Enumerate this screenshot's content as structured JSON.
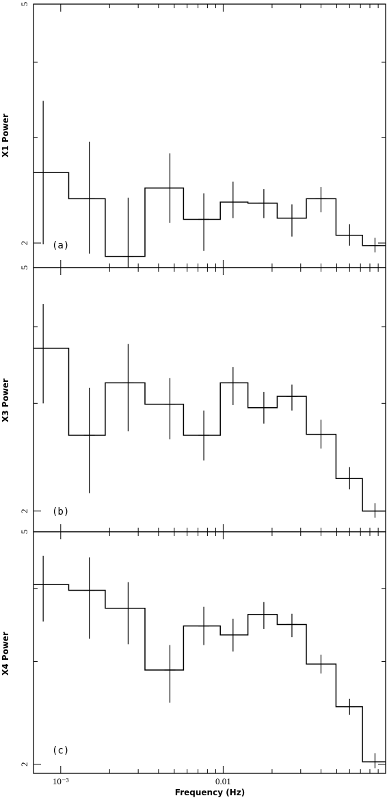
{
  "chart_data": [
    {
      "type": "line",
      "step": true,
      "x_scale": "log",
      "y_scale": "log",
      "xlim": [
        0.00068,
        0.1
      ],
      "ylim": [
        1.82,
        5.0
      ],
      "ylabel": "X1 Power",
      "panel_label": "(a)",
      "y_tick_labels": [
        {
          "value": 5,
          "label": "5"
        },
        {
          "value": 2,
          "label": "2"
        }
      ],
      "bins": [
        {
          "lo": 0.00068,
          "hi": 0.00112,
          "x": 0.00078,
          "y": 2.62,
          "err_lo": 1.99,
          "err_hi": 3.45
        },
        {
          "lo": 0.00112,
          "hi": 0.00188,
          "x": 0.0015,
          "y": 2.37,
          "err_lo": 1.92,
          "err_hi": 2.95
        },
        {
          "lo": 0.00188,
          "hi": 0.0033,
          "x": 0.0026,
          "y": 1.9,
          "err_lo": 1.82,
          "err_hi": 2.38
        },
        {
          "lo": 0.0033,
          "hi": 0.0057,
          "x": 0.0047,
          "y": 2.47,
          "err_lo": 2.16,
          "err_hi": 2.82
        },
        {
          "lo": 0.0057,
          "hi": 0.0096,
          "x": 0.0076,
          "y": 2.19,
          "err_lo": 1.94,
          "err_hi": 2.42
        },
        {
          "lo": 0.0096,
          "hi": 0.0142,
          "x": 0.0115,
          "y": 2.34,
          "err_lo": 2.2,
          "err_hi": 2.53
        },
        {
          "lo": 0.0142,
          "hi": 0.0215,
          "x": 0.0178,
          "y": 2.33,
          "err_lo": 2.2,
          "err_hi": 2.46
        },
        {
          "lo": 0.0215,
          "hi": 0.0325,
          "x": 0.0265,
          "y": 2.2,
          "err_lo": 2.05,
          "err_hi": 2.32
        },
        {
          "lo": 0.0325,
          "hi": 0.0495,
          "x": 0.04,
          "y": 2.37,
          "err_lo": 2.25,
          "err_hi": 2.48
        },
        {
          "lo": 0.0495,
          "hi": 0.072,
          "x": 0.06,
          "y": 2.06,
          "err_lo": 1.98,
          "err_hi": 2.15
        },
        {
          "lo": 0.072,
          "hi": 0.1,
          "x": 0.086,
          "y": 1.98,
          "err_lo": 1.93,
          "err_hi": 2.04
        }
      ]
    },
    {
      "type": "line",
      "step": true,
      "x_scale": "log",
      "y_scale": "log",
      "xlim": [
        0.00068,
        0.1
      ],
      "ylim": [
        1.85,
        5.0
      ],
      "ylabel": "X3 Power",
      "panel_label": "(b)",
      "y_tick_labels": [
        {
          "value": 5,
          "label": "5"
        },
        {
          "value": 2,
          "label": "2"
        }
      ],
      "bins": [
        {
          "lo": 0.00068,
          "hi": 0.00112,
          "x": 0.00078,
          "y": 3.69,
          "err_lo": 3.0,
          "err_hi": 4.36
        },
        {
          "lo": 0.00112,
          "hi": 0.00188,
          "x": 0.0015,
          "y": 2.66,
          "err_lo": 2.14,
          "err_hi": 3.18
        },
        {
          "lo": 0.00188,
          "hi": 0.0033,
          "x": 0.0026,
          "y": 3.24,
          "err_lo": 2.7,
          "err_hi": 3.75
        },
        {
          "lo": 0.0033,
          "hi": 0.0057,
          "x": 0.0047,
          "y": 2.99,
          "err_lo": 2.62,
          "err_hi": 3.3
        },
        {
          "lo": 0.0057,
          "hi": 0.0096,
          "x": 0.0076,
          "y": 2.66,
          "err_lo": 2.42,
          "err_hi": 2.92
        },
        {
          "lo": 0.0096,
          "hi": 0.0142,
          "x": 0.0115,
          "y": 3.24,
          "err_lo": 2.98,
          "err_hi": 3.44
        },
        {
          "lo": 0.0142,
          "hi": 0.0215,
          "x": 0.0178,
          "y": 2.95,
          "err_lo": 2.78,
          "err_hi": 3.13
        },
        {
          "lo": 0.0215,
          "hi": 0.0325,
          "x": 0.0265,
          "y": 3.08,
          "err_lo": 2.92,
          "err_hi": 3.22
        },
        {
          "lo": 0.0325,
          "hi": 0.0495,
          "x": 0.04,
          "y": 2.67,
          "err_lo": 2.53,
          "err_hi": 2.82
        },
        {
          "lo": 0.0495,
          "hi": 0.072,
          "x": 0.06,
          "y": 2.26,
          "err_lo": 2.17,
          "err_hi": 2.36
        },
        {
          "lo": 0.072,
          "hi": 0.1,
          "x": 0.086,
          "y": 2.0,
          "err_lo": 1.95,
          "err_hi": 2.06
        }
      ]
    },
    {
      "type": "line",
      "step": true,
      "x_scale": "log",
      "y_scale": "log",
      "xlim": [
        0.00068,
        0.1
      ],
      "ylim": [
        1.93,
        5.0
      ],
      "ylabel": "X4 Power",
      "xlabel": "Frequency (Hz)",
      "panel_label": "(c)",
      "y_tick_labels": [
        {
          "value": 5,
          "label": "5"
        },
        {
          "value": 2,
          "label": "2"
        }
      ],
      "x_tick_labels": [
        {
          "value": 0.001,
          "label": "10⁻³"
        },
        {
          "value": 0.01,
          "label": "0.01"
        }
      ],
      "bins": [
        {
          "lo": 0.00068,
          "hi": 0.00112,
          "x": 0.00078,
          "y": 4.06,
          "err_lo": 3.51,
          "err_hi": 4.55
        },
        {
          "lo": 0.00112,
          "hi": 0.00188,
          "x": 0.0015,
          "y": 3.97,
          "err_lo": 3.28,
          "err_hi": 4.52
        },
        {
          "lo": 0.00188,
          "hi": 0.0033,
          "x": 0.0026,
          "y": 3.7,
          "err_lo": 3.21,
          "err_hi": 4.1
        },
        {
          "lo": 0.0033,
          "hi": 0.0057,
          "x": 0.0047,
          "y": 2.9,
          "err_lo": 2.55,
          "err_hi": 3.2
        },
        {
          "lo": 0.0057,
          "hi": 0.0096,
          "x": 0.0076,
          "y": 3.45,
          "err_lo": 3.2,
          "err_hi": 3.72
        },
        {
          "lo": 0.0096,
          "hi": 0.0142,
          "x": 0.0115,
          "y": 3.33,
          "err_lo": 3.12,
          "err_hi": 3.55
        },
        {
          "lo": 0.0142,
          "hi": 0.0215,
          "x": 0.0178,
          "y": 3.61,
          "err_lo": 3.41,
          "err_hi": 3.79
        },
        {
          "lo": 0.0215,
          "hi": 0.0325,
          "x": 0.0265,
          "y": 3.47,
          "err_lo": 3.3,
          "err_hi": 3.62
        },
        {
          "lo": 0.0325,
          "hi": 0.0495,
          "x": 0.04,
          "y": 2.97,
          "err_lo": 2.86,
          "err_hi": 3.08
        },
        {
          "lo": 0.0495,
          "hi": 0.072,
          "x": 0.06,
          "y": 2.51,
          "err_lo": 2.43,
          "err_hi": 2.59
        },
        {
          "lo": 0.072,
          "hi": 0.1,
          "x": 0.086,
          "y": 2.02,
          "err_lo": 1.97,
          "err_hi": 2.09
        }
      ]
    }
  ]
}
